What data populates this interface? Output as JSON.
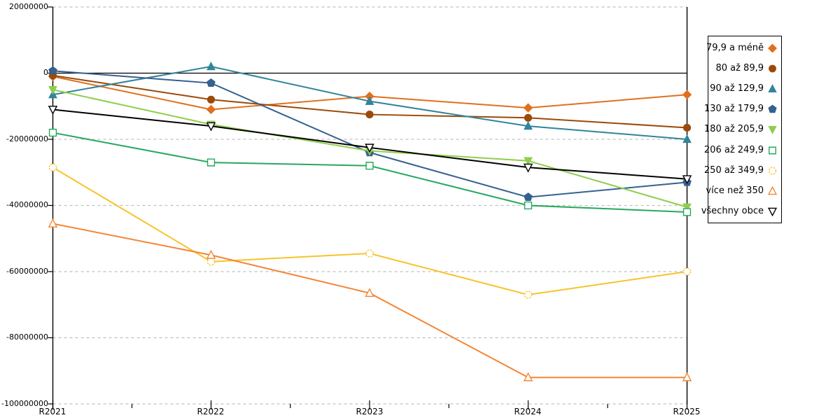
{
  "y_axis": {
    "labels": [
      "20000000",
      "0",
      "-20000000",
      "-40000000",
      "-60000000",
      "-80000000",
      "-100000000"
    ]
  },
  "x_axis": {
    "labels": [
      "R2021",
      "R2022",
      "R2023",
      "R2024",
      "R2025"
    ]
  },
  "colors": {
    "background": "#ffffff",
    "grid": "#c0c0c0",
    "axis": "#000000",
    "zero_line": "#000000"
  },
  "chart_data": {
    "type": "line",
    "title": "",
    "xlabel": "",
    "ylabel": "",
    "categories": [
      "R2021",
      "R2022",
      "R2023",
      "R2024",
      "R2025"
    ],
    "ylim": [
      -100000000,
      20000000
    ],
    "y_ticks": [
      20000000,
      0,
      -20000000,
      -40000000,
      -60000000,
      -80000000,
      -100000000
    ],
    "grid": "horizontal-dashed",
    "zero_line": true,
    "legend_position": "right",
    "series": [
      {
        "name": "79,9 a méně",
        "color": "#E0701D",
        "marker": "diamond",
        "style": "filled",
        "values": [
          -1000000,
          -11000000,
          -7000000,
          -10500000,
          -6500000
        ]
      },
      {
        "name": "80 až 89,9",
        "color": "#9C4A08",
        "marker": "circle",
        "style": "filled",
        "values": [
          -700000,
          -8000000,
          -12500000,
          -13500000,
          -16500000
        ]
      },
      {
        "name": "90 až 129,9",
        "color": "#31849B",
        "marker": "triangle-up",
        "style": "filled",
        "values": [
          -6500000,
          2000000,
          -8500000,
          -16000000,
          -20000000
        ]
      },
      {
        "name": "130 až 179,9",
        "color": "#35618F",
        "marker": "pentagon",
        "style": "filled",
        "values": [
          700000,
          -3000000,
          -24000000,
          -37500000,
          -33000000
        ]
      },
      {
        "name": "180 až 205,9",
        "color": "#8FCE4D",
        "marker": "triangle-down",
        "style": "filled",
        "values": [
          -5000000,
          -15500000,
          -23500000,
          -26500000,
          -40500000
        ]
      },
      {
        "name": "206 až 249,9",
        "color": "#27A85F",
        "marker": "square",
        "style": "open",
        "values": [
          -18000000,
          -27000000,
          -28000000,
          -40000000,
          -42000000
        ]
      },
      {
        "name": "250 až 349,9",
        "color": "#F7C32A",
        "marker": "circle-dashed",
        "style": "open",
        "values": [
          -28500000,
          -57000000,
          -54500000,
          -67000000,
          -60000000
        ]
      },
      {
        "name": "více než 350",
        "color": "#F58536",
        "marker": "triangle-up",
        "style": "open",
        "values": [
          -45500000,
          -55000000,
          -66500000,
          -92000000,
          -92000000
        ]
      },
      {
        "name": "všechny obce",
        "color": "#000000",
        "marker": "triangle-down",
        "style": "open",
        "values": [
          -11000000,
          -16000000,
          -22500000,
          -28500000,
          -32000000
        ]
      }
    ]
  }
}
